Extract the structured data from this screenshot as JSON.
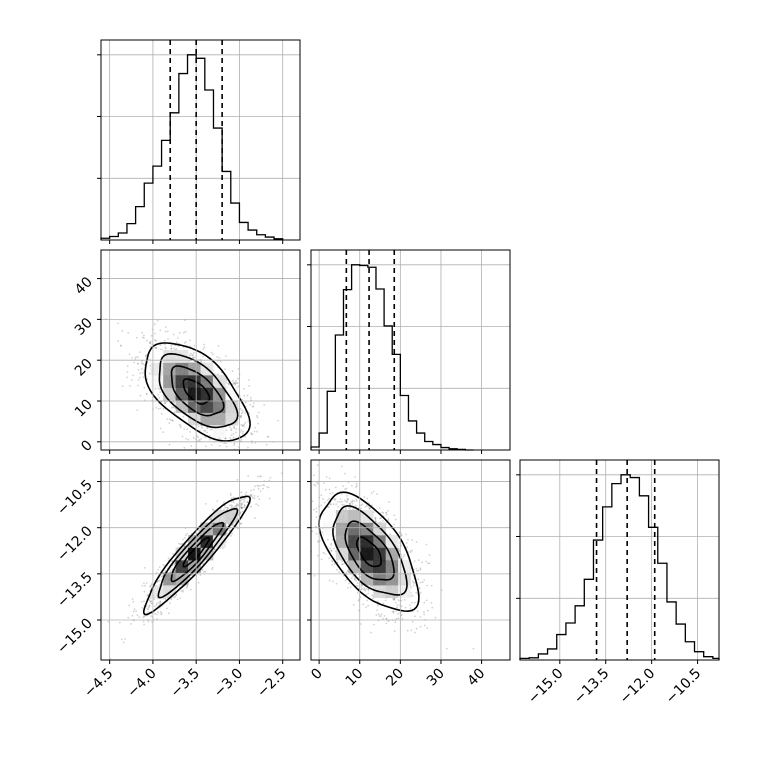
{
  "chart_data": {
    "type": "corner",
    "grid": true,
    "parameters": [
      {
        "range": [
          -4.6,
          -2.3
        ],
        "ticks": [
          -4.5,
          -4.0,
          -3.5,
          -3.0,
          -2.5
        ],
        "tick_labels": [
          "−4.5",
          "−4.0",
          "−3.5",
          "−3.0",
          "−2.5"
        ],
        "quantiles": [
          -3.8,
          -3.5,
          -3.2
        ],
        "hist": {
          "edges": [
            -4.6,
            -4.5,
            -4.4,
            -4.3,
            -4.2,
            -4.1,
            -4.0,
            -3.9,
            -3.8,
            -3.7,
            -3.6,
            -3.5,
            -3.4,
            -3.3,
            -3.2,
            -3.1,
            -3.0,
            -2.9,
            -2.8,
            -2.7,
            -2.6,
            -2.5
          ],
          "counts": [
            3,
            6,
            12,
            28,
            57,
            97,
            126,
            170,
            217,
            284,
            316,
            310,
            256,
            191,
            117,
            63,
            30,
            17,
            9,
            5,
            2
          ]
        }
      },
      {
        "range": [
          -2,
          47
        ],
        "ticks": [
          0,
          10,
          20,
          30,
          40
        ],
        "tick_labels": [
          "0",
          "10",
          "20",
          "30",
          "40"
        ],
        "quantiles": [
          6.7,
          12.3,
          18.5
        ],
        "hist": {
          "edges": [
            -2,
            0,
            2,
            4,
            6,
            8,
            10,
            12,
            14,
            16,
            18,
            20,
            22,
            24,
            26,
            28,
            30,
            32,
            34,
            36,
            38
          ],
          "counts": [
            5,
            28,
            97,
            190,
            265,
            306,
            305,
            302,
            266,
            205,
            158,
            90,
            48,
            28,
            14,
            9,
            4,
            2,
            1,
            0
          ]
        }
      },
      {
        "range": [
          -16.3,
          -9.8
        ],
        "ticks": [
          -15.0,
          -13.5,
          -12.0,
          -10.5
        ],
        "tick_labels": [
          "−15.0",
          "−13.5",
          "−12.0",
          "−10.5"
        ],
        "quantiles": [
          -13.8,
          -12.8,
          -11.9
        ],
        "hist": {
          "edges": [
            -16.3,
            -16.0,
            -15.7,
            -15.4,
            -15.1,
            -14.8,
            -14.5,
            -14.2,
            -13.9,
            -13.6,
            -13.3,
            -13.0,
            -12.7,
            -12.4,
            -12.1,
            -11.8,
            -11.5,
            -11.2,
            -10.9,
            -10.6,
            -10.3,
            -10.0,
            -9.8
          ],
          "counts": [
            3,
            4,
            11,
            20,
            46,
            67,
            98,
            146,
            217,
            277,
            319,
            335,
            330,
            297,
            240,
            175,
            105,
            65,
            33,
            15,
            6,
            3
          ]
        }
      }
    ],
    "pairs": [
      {
        "x": 0,
        "y": 1,
        "mean": [
          -3.5,
          12.3
        ],
        "sd": [
          0.3,
          6.0
        ],
        "rho": -0.58
      },
      {
        "x": 0,
        "y": 2,
        "mean": [
          -3.5,
          -12.8
        ],
        "sd": [
          0.3,
          0.95
        ],
        "rho": 0.93
      },
      {
        "x": 1,
        "y": 2,
        "mean": [
          12.3,
          -12.8
        ],
        "sd": [
          6.0,
          0.95
        ],
        "rho": -0.6
      }
    ],
    "contour_levels": [
      0.5,
      1.0,
      1.5,
      2.0
    ]
  }
}
